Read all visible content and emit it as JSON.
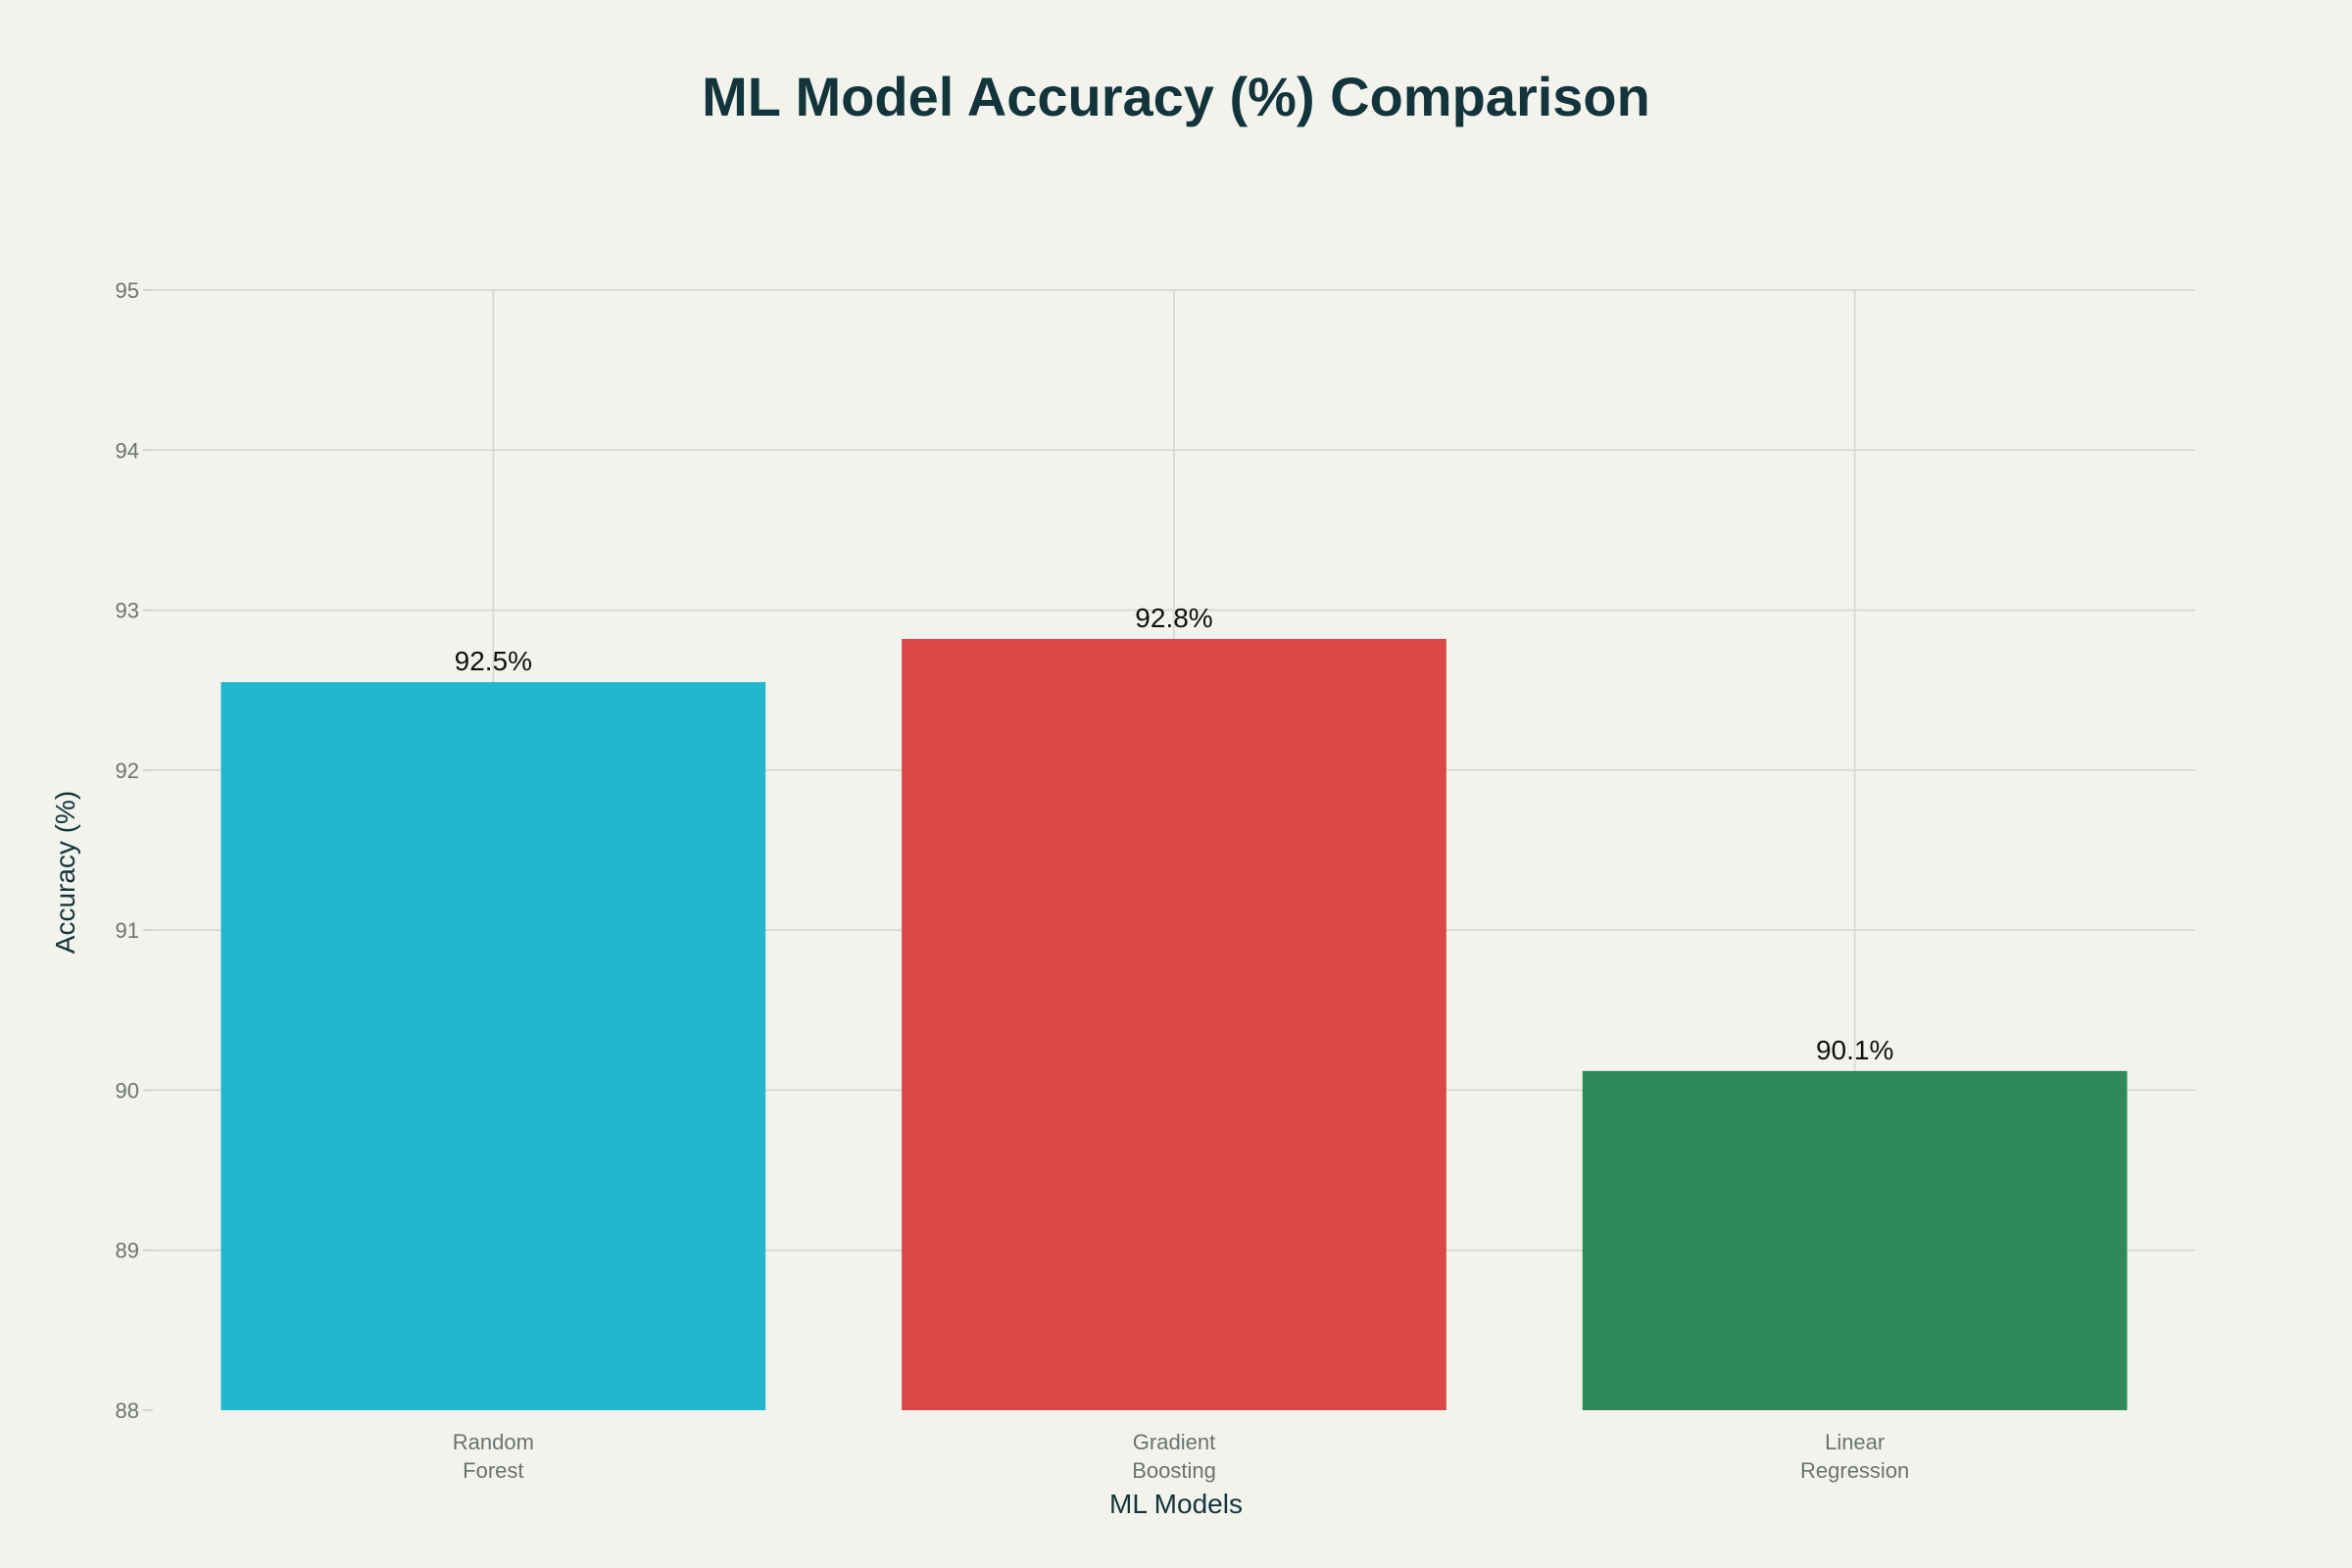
{
  "chart_data": {
    "type": "bar",
    "title": "ML Model Accuracy (%) Comparison",
    "xlabel": "ML Models",
    "ylabel": "Accuracy (%)",
    "categories": [
      [
        "Random",
        "Forest"
      ],
      [
        "Gradient",
        "Boosting"
      ],
      [
        "Linear",
        "Regression"
      ]
    ],
    "values": [
      92.55,
      92.82,
      90.12
    ],
    "data_labels": [
      "92.5%",
      "92.8%",
      "90.1%"
    ],
    "colors": [
      "#21b8cd",
      "#db4646",
      "#2e8a58"
    ],
    "ylim": [
      88,
      95
    ],
    "yticks": [
      88,
      89,
      90,
      91,
      92,
      93,
      94,
      95
    ],
    "grid": true,
    "legend": "none"
  },
  "colors": {
    "background": "#f3f3ee",
    "title": "#13343b",
    "tick_text": "#6b7370",
    "label_text": "#111111",
    "grid": "#d4d4cf"
  }
}
